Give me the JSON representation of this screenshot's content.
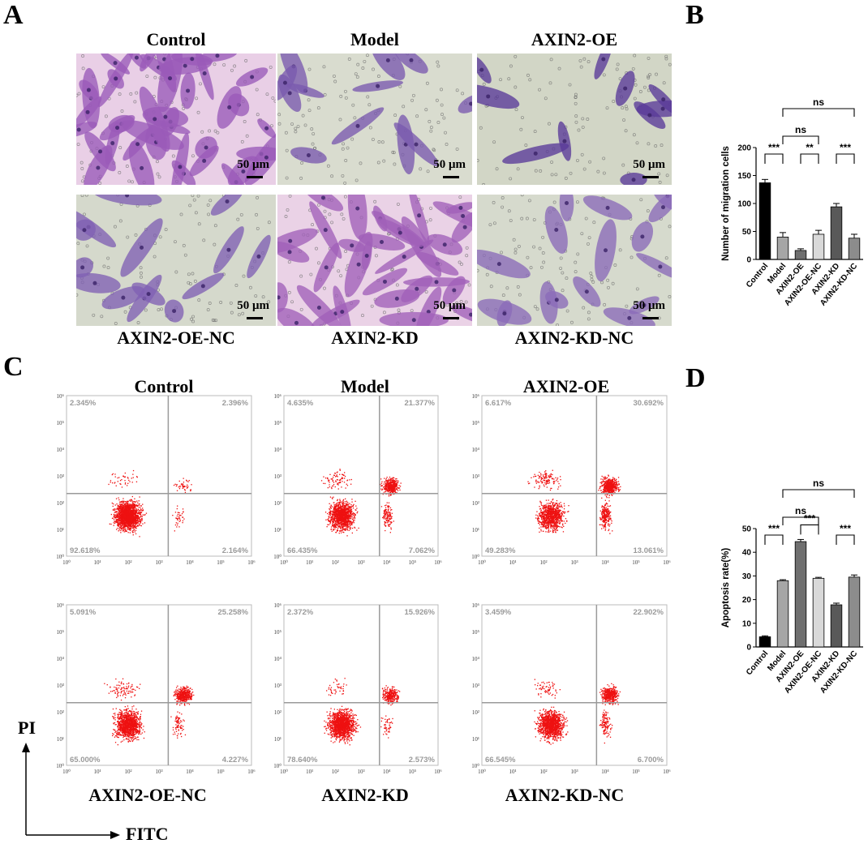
{
  "panels": {
    "a": {
      "letter": "A"
    },
    "b": {
      "letter": "B"
    },
    "c": {
      "letter": "C"
    },
    "d": {
      "letter": "D"
    }
  },
  "micrographs": {
    "top_titles": [
      "Control",
      "Model",
      "AXIN2-OE"
    ],
    "bottom_titles": [
      "AXIN2-OE-NC",
      "AXIN2-KD",
      "AXIN2-KD-NC"
    ],
    "scale_label": "50 μm",
    "background_colors": [
      "#e9cfe6",
      "#d9dccf",
      "#d2d6c6",
      "#d5d9cc",
      "#ead2e6",
      "#d6dacd"
    ],
    "cell_colors": [
      "#9a5ab8",
      "#7a5aae",
      "#5a3a98",
      "#8060b4",
      "#a060b8",
      "#8a6ab8"
    ]
  },
  "flow": {
    "top_titles": [
      "Control",
      "Model",
      "AXIN2-OE"
    ],
    "bottom_titles": [
      "AXIN2-OE-NC",
      "AXIN2-KD",
      "AXIN2-KD-NC"
    ],
    "tick_labels": [
      "10⁰",
      "10¹",
      "10²",
      "10³",
      "10⁴",
      "10⁵",
      "10⁶"
    ],
    "quadrants": [
      {
        "ul": "2.345%",
        "ur": "2.396%",
        "ll": "92.618%",
        "lr": "2.164%"
      },
      {
        "ul": "4.635%",
        "ur": "21.377%",
        "ll": "66.435%",
        "lr": "7.062%"
      },
      {
        "ul": "6.617%",
        "ur": "30.692%",
        "ll": "49.283%",
        "lr": "13.061%"
      },
      {
        "ul": "5.091%",
        "ur": "25.258%",
        "ll": "65.000%",
        "lr": "4.227%"
      },
      {
        "ul": "2.372%",
        "ur": "15.926%",
        "ll": "78.640%",
        "lr": "2.573%"
      },
      {
        "ul": "3.459%",
        "ur": "22.902%",
        "ll": "66.545%",
        "lr": "6.700%"
      }
    ],
    "dot_color": "#ee1111",
    "x_axis_label": "FITC",
    "y_axis_label": "PI"
  },
  "chart_data": [
    {
      "type": "bar",
      "categories": [
        "Control",
        "Model",
        "AXIN2-OE",
        "AXIN2-OE-NC",
        "AXIN2-KD",
        "AXIN2-KD-NC"
      ],
      "values": [
        137,
        40,
        16,
        45,
        94,
        38
      ],
      "errors": [
        6,
        8,
        3,
        7,
        6,
        7
      ],
      "colors": [
        "#000000",
        "#a6a6a6",
        "#6f6f6f",
        "#d9d9d9",
        "#595959",
        "#8c8c8c"
      ],
      "ylabel": "Number of migration cells",
      "ylim": [
        0,
        200
      ],
      "yticks": [
        "0",
        "50",
        "100",
        "150",
        "200"
      ],
      "significance": [
        {
          "from": 0,
          "to": 1,
          "label": "***"
        },
        {
          "from": 2,
          "to": 3,
          "label": "**"
        },
        {
          "from": 4,
          "to": 5,
          "label": "***"
        },
        {
          "from": 1,
          "to": 3,
          "label": "ns"
        },
        {
          "from": 1,
          "to": 5,
          "label": "ns"
        }
      ]
    },
    {
      "type": "bar",
      "categories": [
        "Control",
        "Model",
        "AXIN2-OE",
        "AXIN2-OE-NC",
        "AXIN2-KD",
        "AXIN2-KD-NC"
      ],
      "values": [
        4.3,
        28.0,
        44.5,
        29.0,
        17.8,
        29.5
      ],
      "errors": [
        0.4,
        0.4,
        0.9,
        0.4,
        0.7,
        0.9
      ],
      "colors": [
        "#000000",
        "#a6a6a6",
        "#6f6f6f",
        "#d9d9d9",
        "#595959",
        "#8c8c8c"
      ],
      "ylabel": "Apoptosis rate(%)",
      "ylim": [
        0,
        50
      ],
      "yticks": [
        "0",
        "10",
        "20",
        "30",
        "40",
        "50"
      ],
      "significance": [
        {
          "from": 0,
          "to": 1,
          "label": "***"
        },
        {
          "from": 2,
          "to": 3,
          "label": "***"
        },
        {
          "from": 4,
          "to": 5,
          "label": "***"
        },
        {
          "from": 1,
          "to": 3,
          "label": "ns"
        },
        {
          "from": 1,
          "to": 5,
          "label": "ns"
        }
      ]
    }
  ]
}
